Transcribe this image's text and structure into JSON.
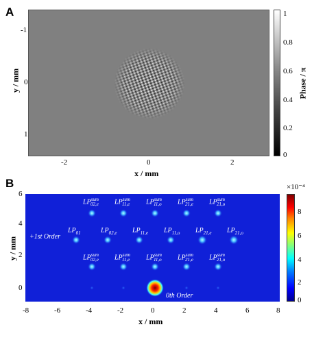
{
  "panel_a": {
    "letter": "A",
    "xlabel": "x / mm",
    "ylabel": "y / mm",
    "x_ticks": [
      "-2",
      "0",
      "2"
    ],
    "y_ticks": [
      "-1",
      "0",
      "1"
    ],
    "colorbar_label": "Phase / π",
    "colorbar_ticks": [
      "1",
      "0.8",
      "0.6",
      "0.4",
      "0.2",
      "0"
    ],
    "background_color": "#808080"
  },
  "panel_b": {
    "letter": "B",
    "xlabel": "x / mm",
    "ylabel": "y / mm",
    "x_ticks": [
      "-8",
      "-6",
      "-4",
      "-2",
      "0",
      "2",
      "4",
      "6",
      "8"
    ],
    "y_ticks": [
      "6",
      "4",
      "2",
      "0"
    ],
    "colorbar_exponent": "×10⁻⁴",
    "colorbar_ticks": [
      "8",
      "6",
      "4",
      "2",
      "0"
    ],
    "order_labels": {
      "first": "+1st Order",
      "zeroth": "0th Order"
    },
    "row1": [
      {
        "base": "LP",
        "sup": "sum",
        "sub": "02,e"
      },
      {
        "base": "LP",
        "sup": "sum",
        "sub": "11,e"
      },
      {
        "base": "LP",
        "sup": "sum",
        "sub": "11,o"
      },
      {
        "base": "LP",
        "sup": "sum",
        "sub": "21,e"
      },
      {
        "base": "LP",
        "sup": "sum",
        "sub": "21,o"
      }
    ],
    "row2": [
      {
        "base": "LP",
        "sup": "",
        "sub": "01"
      },
      {
        "base": "LP",
        "sup": "",
        "sub": "02,e"
      },
      {
        "base": "LP",
        "sup": "",
        "sub": "11,e"
      },
      {
        "base": "LP",
        "sup": "",
        "sub": "11,o"
      },
      {
        "base": "LP",
        "sup": "",
        "sub": "21,e"
      },
      {
        "base": "LP",
        "sup": "",
        "sub": "21,o"
      }
    ],
    "row3": [
      {
        "base": "LP",
        "sup": "sum",
        "sub": "02,e"
      },
      {
        "base": "LP",
        "sup": "sum",
        "sub": "11,e"
      },
      {
        "base": "LP",
        "sup": "sum",
        "sub": "11,o"
      },
      {
        "base": "LP",
        "sup": "sum",
        "sub": "21,e"
      },
      {
        "base": "LP",
        "sup": "sum",
        "sub": "21,o"
      }
    ],
    "background_color": "#1020d8"
  }
}
